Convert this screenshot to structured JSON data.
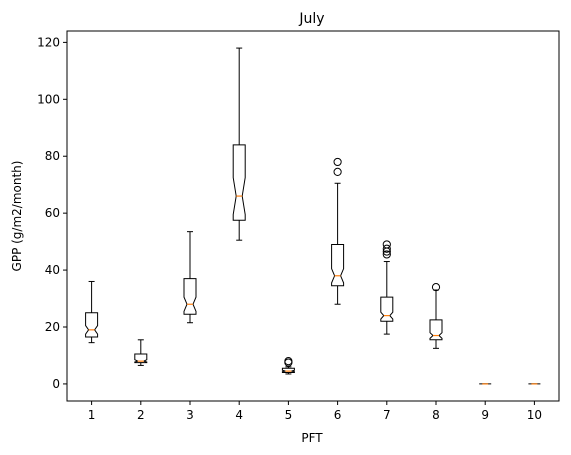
{
  "chart_data": {
    "type": "boxplot",
    "notched": true,
    "title": "July",
    "xlabel": "PFT",
    "ylabel": "GPP (g/m2/month)",
    "ylim": [
      -6,
      124
    ],
    "yticks": [
      0,
      20,
      40,
      60,
      80,
      100,
      120
    ],
    "categories": [
      "1",
      "2",
      "3",
      "4",
      "5",
      "6",
      "7",
      "8",
      "9",
      "10"
    ],
    "boxes": [
      {
        "category": "1",
        "whisker_low": 14.5,
        "q1": 16.5,
        "median": 19,
        "q3": 25,
        "whisker_high": 36,
        "notch_low": 17.5,
        "notch_high": 20.5,
        "outliers": []
      },
      {
        "category": "2",
        "whisker_low": 6.5,
        "q1": 7.5,
        "median": 8,
        "q3": 10.5,
        "whisker_high": 15.5,
        "notch_low": 7.7,
        "notch_high": 8.5,
        "outliers": []
      },
      {
        "category": "3",
        "whisker_low": 21.5,
        "q1": 24.5,
        "median": 28,
        "q3": 37,
        "whisker_high": 53.5,
        "notch_low": 25.5,
        "notch_high": 30.5,
        "outliers": []
      },
      {
        "category": "4",
        "whisker_low": 50.5,
        "q1": 57.5,
        "median": 66,
        "q3": 84,
        "whisker_high": 118,
        "notch_low": 59.5,
        "notch_high": 72.5,
        "outliers": []
      },
      {
        "category": "5",
        "whisker_low": 3.5,
        "q1": 4,
        "median": 4.5,
        "q3": 5.5,
        "whisker_high": 6,
        "notch_low": 4.3,
        "notch_high": 4.8,
        "outliers": [
          7.5,
          8
        ]
      },
      {
        "category": "6",
        "whisker_low": 28,
        "q1": 34.5,
        "median": 38,
        "q3": 49,
        "whisker_high": 70.5,
        "notch_low": 35.5,
        "notch_high": 40.5,
        "outliers": [
          74.5,
          78
        ]
      },
      {
        "category": "7",
        "whisker_low": 17.5,
        "q1": 22,
        "median": 24,
        "q3": 30.5,
        "whisker_high": 43,
        "notch_low": 22.8,
        "notch_high": 25.2,
        "outliers": [
          45.5,
          46.5,
          47.5,
          49
        ]
      },
      {
        "category": "8",
        "whisker_low": 12.5,
        "q1": 15.5,
        "median": 17,
        "q3": 22.5,
        "whisker_high": 33,
        "notch_low": 16,
        "notch_high": 18,
        "outliers": [
          34
        ]
      },
      {
        "category": "9",
        "whisker_low": 0,
        "q1": 0,
        "median": 0,
        "q3": 0,
        "whisker_high": 0,
        "notch_low": 0,
        "notch_high": 0,
        "outliers": []
      },
      {
        "category": "10",
        "whisker_low": 0,
        "q1": 0,
        "median": 0,
        "q3": 0,
        "whisker_high": 0,
        "notch_low": 0,
        "notch_high": 0,
        "outliers": []
      }
    ],
    "colors": {
      "box": "#000000",
      "median": "#ff7f0e",
      "outlier_edge": "#000000"
    },
    "grid": false,
    "legend": "none"
  }
}
